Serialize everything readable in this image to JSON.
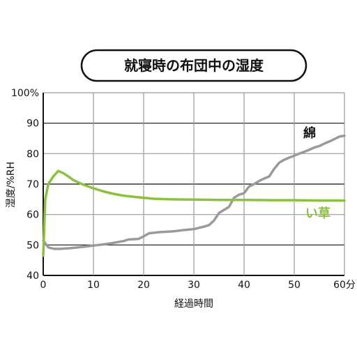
{
  "chart_data": {
    "type": "line",
    "title": "就寝時の布団中の湿度",
    "xlabel": "経過時間",
    "ylabel": "湿度/%RH",
    "x_unit_suffix": "分",
    "xlim": [
      0,
      60
    ],
    "ylim": [
      40,
      100
    ],
    "x_ticks": [
      0,
      10,
      20,
      30,
      40,
      50,
      60
    ],
    "y_ticks": [
      40,
      50,
      60,
      70,
      80,
      90,
      100
    ],
    "y_tick_labels": [
      "40",
      "50",
      "60",
      "70",
      "80",
      "90",
      "100%"
    ],
    "grid": true,
    "series": [
      {
        "name": "綿",
        "color": "#9a9a9a",
        "points": [
          [
            0,
            51.5
          ],
          [
            1,
            49.2
          ],
          [
            2,
            48.8
          ],
          [
            3,
            48.7
          ],
          [
            5,
            48.9
          ],
          [
            8,
            49.4
          ],
          [
            10,
            49.8
          ],
          [
            12,
            50.2
          ],
          [
            14,
            50.7
          ],
          [
            16,
            51.3
          ],
          [
            17,
            51.8
          ],
          [
            19,
            52.0
          ],
          [
            20,
            52.8
          ],
          [
            21,
            53.8
          ],
          [
            23,
            54.2
          ],
          [
            26,
            54.5
          ],
          [
            28,
            54.9
          ],
          [
            30,
            55.2
          ],
          [
            32,
            56.0
          ],
          [
            33,
            56.5
          ],
          [
            34,
            58.0
          ],
          [
            35,
            60.5
          ],
          [
            36,
            61.5
          ],
          [
            37,
            62.5
          ],
          [
            38,
            65.5
          ],
          [
            39,
            66.5
          ],
          [
            40,
            67.0
          ],
          [
            41,
            69.2
          ],
          [
            42,
            70.0
          ],
          [
            43,
            71.0
          ],
          [
            44,
            71.8
          ],
          [
            45,
            72.5
          ],
          [
            46,
            75.0
          ],
          [
            47,
            77.0
          ],
          [
            48,
            78.0
          ],
          [
            49,
            78.7
          ],
          [
            50,
            79.3
          ],
          [
            51,
            80.0
          ],
          [
            52,
            80.6
          ],
          [
            53,
            81.3
          ],
          [
            54,
            82.0
          ],
          [
            55,
            82.5
          ],
          [
            56,
            83.3
          ],
          [
            57,
            84.0
          ],
          [
            58,
            84.8
          ],
          [
            59,
            85.6
          ],
          [
            60,
            85.9
          ]
        ]
      },
      {
        "name": "い草",
        "color": "#8dc03e",
        "points": [
          [
            0,
            46.5
          ],
          [
            0.4,
            65.0
          ],
          [
            1,
            70.0
          ],
          [
            2,
            72.5
          ],
          [
            3,
            74.3
          ],
          [
            4,
            73.6
          ],
          [
            5,
            72.5
          ],
          [
            6,
            71.3
          ],
          [
            8,
            69.8
          ],
          [
            10,
            68.6
          ],
          [
            12,
            67.6
          ],
          [
            14,
            66.8
          ],
          [
            16,
            66.2
          ],
          [
            18,
            65.8
          ],
          [
            20,
            65.5
          ],
          [
            22,
            65.2
          ],
          [
            25,
            65.0
          ],
          [
            30,
            64.9
          ],
          [
            35,
            64.8
          ],
          [
            40,
            64.8
          ],
          [
            45,
            64.7
          ],
          [
            50,
            64.7
          ],
          [
            55,
            64.6
          ],
          [
            60,
            64.6
          ]
        ]
      }
    ]
  }
}
